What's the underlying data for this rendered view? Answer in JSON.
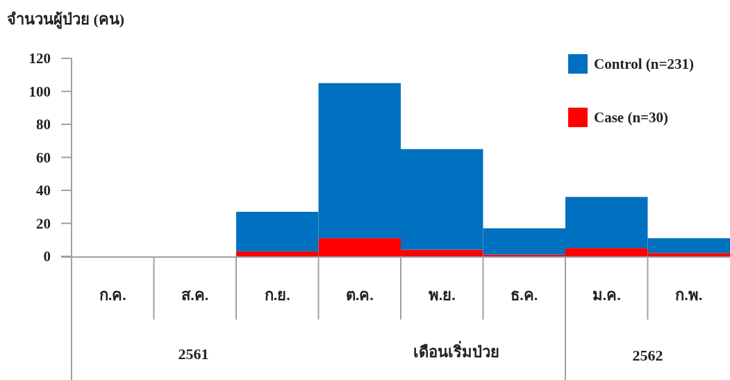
{
  "chart_data": {
    "type": "bar",
    "stacked": true,
    "ylabel": "จำนวนผู้ป่วย (คน)",
    "xlabel": "เดือนเริ่มป่วย",
    "categories": [
      "ก.ค.",
      "ส.ค.",
      "ก.ย.",
      "ต.ค.",
      "พ.ย.",
      "ธ.ค.",
      "ม.ค.",
      "ก.พ."
    ],
    "series": [
      {
        "name": "Case (n=30)",
        "color": "#ff0000",
        "values": [
          0,
          0,
          3,
          11,
          4,
          1,
          5,
          2
        ]
      },
      {
        "name": "Control (n=231)",
        "color": "#0070c0",
        "values": [
          0,
          0,
          24,
          94,
          61,
          16,
          31,
          9
        ]
      }
    ],
    "ylim": [
      0,
      120
    ],
    "yticks": [
      0,
      20,
      40,
      60,
      80,
      100,
      120
    ],
    "legend": "top right",
    "grid": false,
    "annotations": [
      "2561",
      "2562"
    ]
  }
}
